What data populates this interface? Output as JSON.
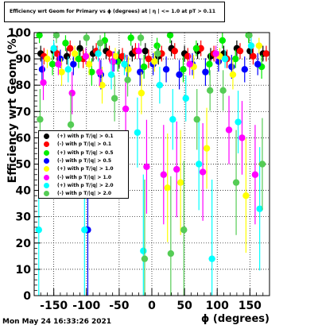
{
  "chart_data": {
    "type": "scatter",
    "title": "Efficiency wrt Geom for Primary vs ϕ (degrees) at | η | <= 1.0 at pT > 0.11",
    "xlabel": "ϕ (degrees)",
    "ylabel": "Efficiency wrt Geom (%)",
    "xlim": [
      -180,
      180
    ],
    "ylim": [
      0,
      100
    ],
    "xticks": [
      -150,
      -100,
      -50,
      0,
      50,
      100,
      150
    ],
    "yticks": [
      0,
      10,
      20,
      30,
      40,
      50,
      60,
      70,
      80,
      90,
      100
    ],
    "grid": true,
    "legend_position": "left-middle",
    "series": [
      {
        "name": "(+) with p T/|q| > 0.1",
        "color": "#000000",
        "x": [
          -170,
          -150,
          -130,
          -110,
          -90,
          -70,
          -50,
          -30,
          -10,
          10,
          30,
          50,
          70,
          90,
          110,
          130,
          150,
          170
        ],
        "y": [
          92,
          93,
          91,
          94,
          92,
          93,
          90,
          92,
          93,
          91,
          94,
          92,
          93,
          91,
          92,
          94,
          93,
          92
        ]
      },
      {
        "name": "(-) with p T/|q| > 0.1",
        "color": "#ff0000",
        "x": [
          -165,
          -145,
          -125,
          -105,
          -85,
          -65,
          -45,
          -25,
          -5,
          15,
          35,
          55,
          75,
          95,
          115,
          135,
          155,
          175
        ],
        "y": [
          91,
          92,
          94,
          90,
          93,
          92,
          91,
          93,
          90,
          92,
          93,
          91,
          94,
          92,
          90,
          93,
          91,
          92
        ]
      },
      {
        "name": "(+) with p T/|q| > 0.5",
        "color": "#00ee00",
        "x": [
          -172,
          -152,
          -132,
          -112,
          -92,
          -72,
          -52,
          -32,
          -12,
          8,
          28,
          48,
          68,
          88,
          108,
          128,
          148,
          168
        ],
        "y": [
          99,
          88,
          96,
          90,
          85,
          97,
          89,
          98,
          87,
          95,
          99,
          86,
          94,
          88,
          97,
          90,
          99,
          87
        ]
      },
      {
        "name": "(-) with p T/|q| > 0.5",
        "color": "#0000ff",
        "x": [
          -168,
          -140,
          -120,
          -98,
          -78,
          -58,
          -38,
          -18,
          2,
          22,
          42,
          62,
          82,
          102,
          122,
          142,
          162
        ],
        "y": [
          86,
          90,
          88,
          25,
          84,
          89,
          87,
          85,
          88,
          86,
          84,
          88,
          85,
          89,
          87,
          86,
          88
        ]
      },
      {
        "name": "(+) with p T/|q| > 1.0",
        "color": "#ffff00",
        "x": [
          -160,
          -138,
          -118,
          -96,
          -76,
          -56,
          -36,
          -16,
          4,
          24,
          44,
          64,
          84,
          104,
          124,
          144,
          164
        ],
        "y": [
          90,
          85,
          92,
          88,
          80,
          91,
          86,
          77,
          89,
          41,
          43,
          87,
          56,
          91,
          84,
          38,
          95
        ]
      },
      {
        "name": "(-) with p T/|q| > 1.0",
        "color": "#ff00ff",
        "x": [
          -166,
          -143,
          -122,
          -101,
          -80,
          -60,
          -40,
          -20,
          -8,
          18,
          38,
          58,
          78,
          98,
          118,
          138,
          158
        ],
        "y": [
          81,
          88,
          77,
          91,
          85,
          89,
          71,
          93,
          49,
          46,
          48,
          88,
          47,
          92,
          63,
          60,
          46
        ]
      },
      {
        "name": "(+) with p T/|q| > 2.0",
        "color": "#00ffff",
        "x": [
          -173,
          -150,
          -128,
          -103,
          -82,
          -62,
          -42,
          -22,
          -13,
          12,
          32,
          52,
          72,
          92,
          112,
          132,
          152,
          165
        ],
        "y": [
          25,
          94,
          86,
          25,
          92,
          84,
          88,
          62,
          17,
          80,
          67,
          75,
          50,
          14,
          90,
          66,
          95,
          33
        ]
      },
      {
        "name": "(-) with p T/|q| > 2.0",
        "color": "#55cc55",
        "x": [
          -171,
          -146,
          -124,
          -100,
          -79,
          -57,
          -37,
          -17,
          -11,
          9,
          29,
          49,
          69,
          89,
          109,
          129,
          149,
          169
        ],
        "y": [
          67,
          99,
          65,
          98,
          96,
          75,
          82,
          98,
          14,
          92,
          16,
          25,
          67,
          78,
          78,
          43,
          99,
          50
        ]
      }
    ]
  },
  "footer": {
    "timestamp": "Mon May 24 16:33:26 2021"
  }
}
